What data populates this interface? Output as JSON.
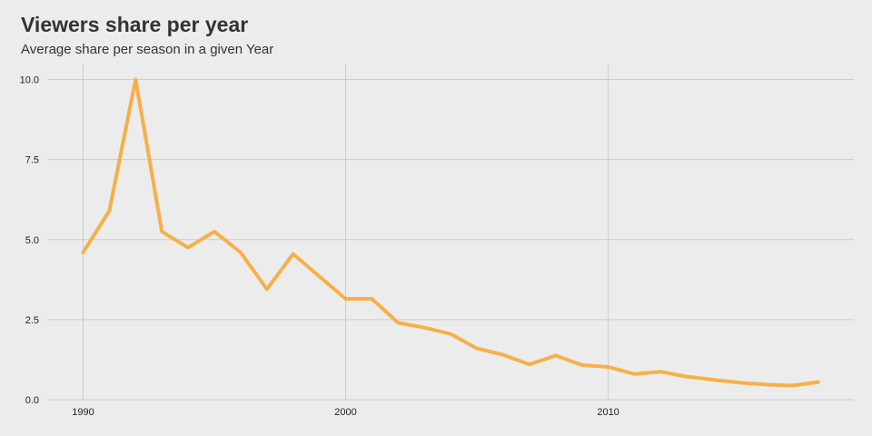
{
  "chart_data": {
    "type": "line",
    "title": "Viewers share per year",
    "subtitle": "Average share per season in a given Year",
    "xlabel": "",
    "ylabel": "",
    "xlim": [
      1990,
      2018
    ],
    "ylim": [
      0,
      10
    ],
    "x_ticks": [
      1990,
      2000,
      2010
    ],
    "y_ticks": [
      "0.0",
      "2.5",
      "5.0",
      "7.5",
      "10.0"
    ],
    "y_tick_values": [
      0,
      2.5,
      5,
      7.5,
      10
    ],
    "grid": true,
    "legend": "none",
    "series": [
      {
        "color": "#f5b04a",
        "x": [
          1990,
          1991,
          1992,
          1993,
          1994,
          1995,
          1996,
          1997,
          1998,
          1999,
          2000,
          2001,
          2002,
          2003,
          2004,
          2005,
          2006,
          2007,
          2008,
          2009,
          2010,
          2011,
          2012,
          2013,
          2014,
          2015,
          2016,
          2017,
          2018
        ],
        "values": [
          4.6,
          5.9,
          10.0,
          5.25,
          4.75,
          5.25,
          4.6,
          3.45,
          4.55,
          3.85,
          3.15,
          3.15,
          2.4,
          2.25,
          2.05,
          1.6,
          1.4,
          1.1,
          1.38,
          1.08,
          1.02,
          0.8,
          0.87,
          0.72,
          0.62,
          0.53,
          0.47,
          0.44,
          0.55
        ]
      }
    ]
  }
}
